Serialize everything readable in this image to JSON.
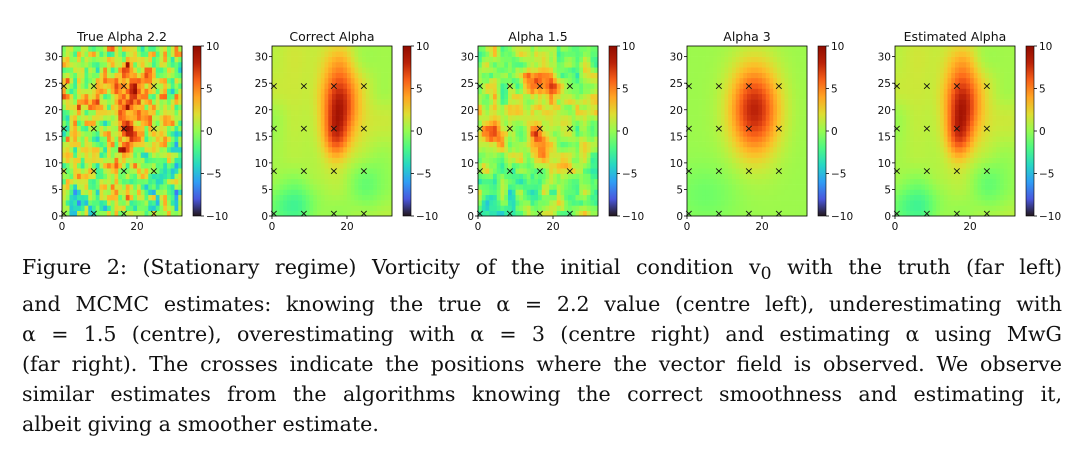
{
  "figure": {
    "color_scale": {
      "min": -10,
      "max": 10,
      "ticks": [
        10,
        5,
        0,
        -5,
        -10
      ],
      "colormap": "turbo"
    },
    "axes": {
      "x_ticks": [
        0,
        20
      ],
      "y_ticks": [
        0,
        5,
        10,
        15,
        20,
        25,
        30
      ],
      "x_range": [
        0,
        32
      ],
      "y_range": [
        0,
        32
      ],
      "grid_size": 32
    },
    "observation_points": {
      "x": [
        0,
        8,
        16,
        24
      ],
      "y": [
        0,
        8,
        16,
        24
      ],
      "marker": "×"
    },
    "panels": [
      {
        "title": "True Alpha 2.2",
        "field": "rough_truth"
      },
      {
        "title": "Correct Alpha",
        "field": "smooth_estimate"
      },
      {
        "title": "Alpha 1.5",
        "field": "rough_estimate"
      },
      {
        "title": "Alpha 3",
        "field": "very_smooth_estimate"
      },
      {
        "title": "Estimated Alpha",
        "field": "smooth_estimate"
      }
    ]
  },
  "caption": {
    "line1": "Figure 2: (Stationary regime) Vorticity of the initial condition v",
    "line1_sub": "0",
    "line1_end": " with the truth (far left)",
    "line2": "and MCMC estimates: knowing the true α = 2.2 value (centre left), underestimating with",
    "line3": "α = 1.5 (centre), overestimating with α = 3 (centre right) and estimating α using MwG",
    "line4": "(far right). The crosses indicate the positions where the vector field is observed. We observe",
    "line5": "similar estimates from the algorithms knowing the correct smoothness and estimating it,",
    "line6": "albeit giving a smoother estimate."
  }
}
